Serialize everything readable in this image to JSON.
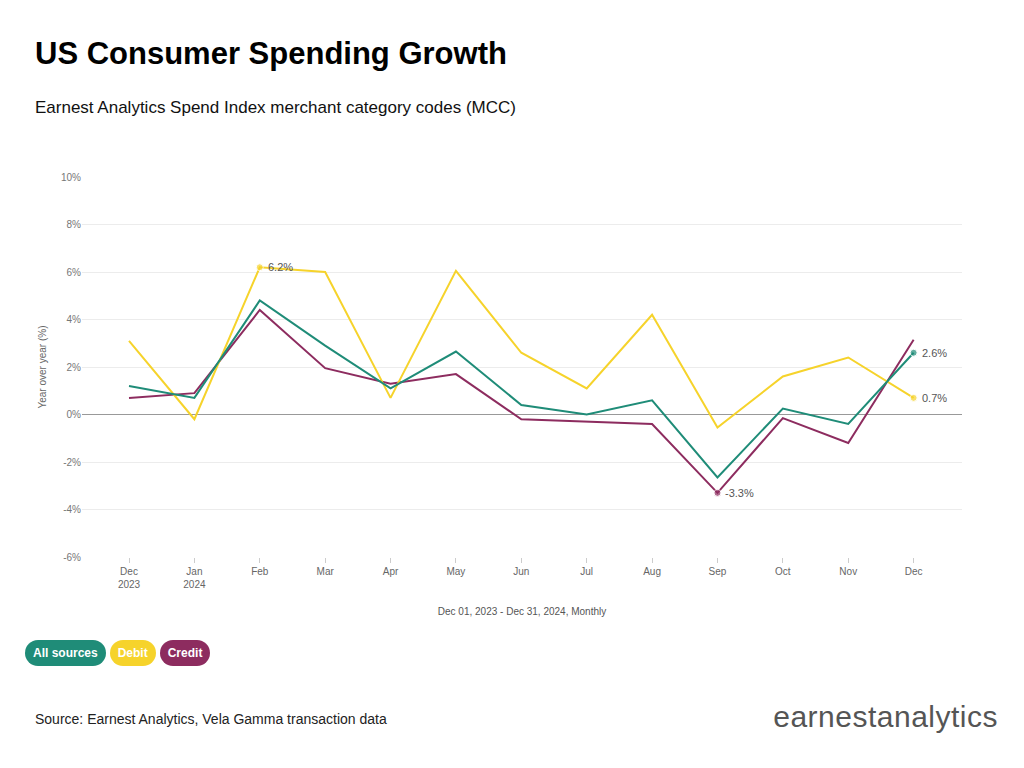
{
  "chart_data": {
    "type": "line",
    "title": "US Consumer Spending Growth",
    "subtitle": "Earnest Analytics Spend Index merchant category codes (MCC)",
    "y_label": "Year over year (%)",
    "x_label": "Dec 01, 2023 - Dec 31, 2024, Monthly",
    "source": "Source: Earnest Analytics, Vela Gamma transaction data",
    "logo": "earnestanalytics",
    "categories": [
      "Dec 2023",
      "Jan 2024",
      "Feb",
      "Mar",
      "Apr",
      "May",
      "Jun",
      "Jul",
      "Aug",
      "Sep",
      "Oct",
      "Nov",
      "Dec"
    ],
    "series": [
      {
        "name": "All sources",
        "color": "#1f8c78",
        "values": [
          1.2,
          0.7,
          4.8,
          2.9,
          1.1,
          2.65,
          0.4,
          0.0,
          0.6,
          -2.65,
          0.25,
          -0.4,
          2.6
        ]
      },
      {
        "name": "Debit",
        "color": "#f6d32b",
        "values": [
          3.1,
          -0.2,
          6.2,
          6.0,
          0.7,
          6.05,
          2.6,
          1.1,
          4.2,
          -0.55,
          1.6,
          2.4,
          0.7
        ]
      },
      {
        "name": "Credit",
        "color": "#8d2c5f",
        "values": [
          0.7,
          0.9,
          4.4,
          1.95,
          1.3,
          1.7,
          -0.2,
          -0.3,
          -0.4,
          -3.3,
          -0.15,
          -1.2,
          3.15
        ]
      }
    ],
    "annotations": [
      {
        "series": "Debit",
        "category": "Feb",
        "text": "6.2%"
      },
      {
        "series": "Credit",
        "category": "Sep",
        "text": "-3.3%"
      },
      {
        "series": "All sources",
        "category": "Dec",
        "text": "2.6%"
      },
      {
        "series": "Debit",
        "category": "Dec",
        "text": "0.7%"
      }
    ],
    "ylim": [
      -6,
      10
    ],
    "yticks": [
      {
        "value": -6,
        "label": "-6%"
      },
      {
        "value": -4,
        "label": "-4%"
      },
      {
        "value": -2,
        "label": "-2%"
      },
      {
        "value": 0,
        "label": "0%"
      },
      {
        "value": 2,
        "label": "2%"
      },
      {
        "value": 4,
        "label": "4%"
      },
      {
        "value": 6,
        "label": "6%"
      },
      {
        "value": 8,
        "label": "8%"
      },
      {
        "value": 10,
        "label": "10%"
      }
    ],
    "grid": true,
    "legend": "bottom-left"
  }
}
